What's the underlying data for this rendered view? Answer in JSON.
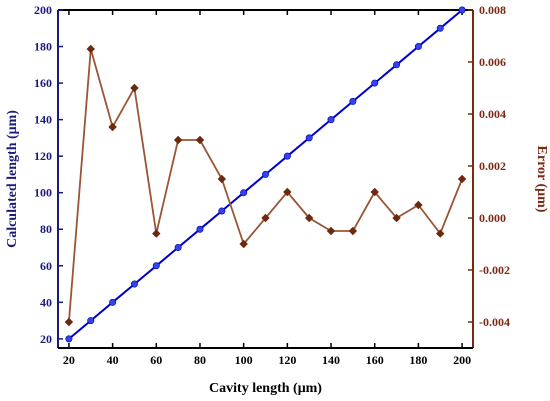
{
  "chart_data": {
    "type": "line",
    "xlabel": "Cavity length (μm)",
    "ylabel_left": "Calculated length (μm)",
    "ylabel_right": "Error (μm)",
    "xlim": [
      15,
      205
    ],
    "ylim_left": [
      15,
      200
    ],
    "ylim_right": [
      -0.005,
      0.008
    ],
    "x_ticks": [
      "20",
      "40",
      "60",
      "80",
      "100",
      "120",
      "140",
      "160",
      "180",
      "200"
    ],
    "y_left_ticks": [
      "20",
      "40",
      "60",
      "80",
      "100",
      "120",
      "140",
      "160",
      "180",
      "200"
    ],
    "y_right_ticks": [
      "-0.004",
      "-0.002",
      "0.000",
      "0.002",
      "0.004",
      "0.006",
      "0.008"
    ],
    "grid": false,
    "colors": {
      "left_axis": "#1a1a7a",
      "right_axis": "#7a2a14",
      "calculated_line": "#0000cc",
      "calculated_marker": "#3344ee",
      "error_line": "#9a5535",
      "error_marker": "#6b2a10"
    },
    "x": [
      20,
      30,
      40,
      50,
      60,
      70,
      80,
      90,
      100,
      110,
      120,
      130,
      140,
      150,
      160,
      170,
      180,
      190,
      200
    ],
    "series": [
      {
        "axis": "left",
        "marker": "circle",
        "values": [
          20,
          30,
          40,
          50,
          60,
          70,
          80,
          90,
          100,
          110,
          120,
          130,
          140,
          150,
          160,
          170,
          180,
          190,
          200
        ]
      },
      {
        "axis": "right",
        "marker": "diamond",
        "values": [
          -0.004,
          0.0065,
          0.0035,
          0.005,
          -0.0006,
          0.003,
          0.003,
          0.0015,
          -0.001,
          0.0,
          0.001,
          0.0,
          -0.0005,
          -0.0005,
          0.001,
          0.0,
          0.0005,
          -0.0006,
          0.0015
        ]
      }
    ]
  }
}
